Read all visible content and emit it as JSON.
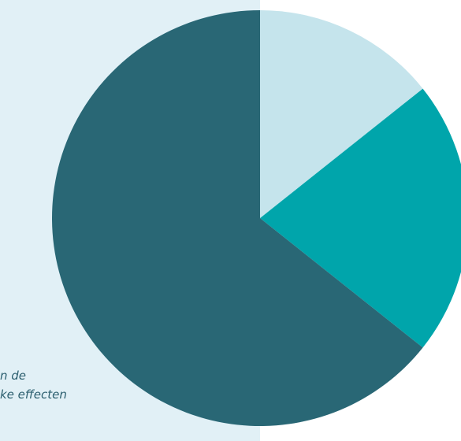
{
  "caption": {
    "line1": "n de",
    "line2": "ke effecten"
  },
  "colors": {
    "panel": "#e1f0f6",
    "caption_text": "#2c5f6f"
  },
  "chart_data": {
    "type": "pie",
    "start": "12 o'clock, clockwise",
    "slices": [
      {
        "value": 14.3,
        "color": "#c5e4ec"
      },
      {
        "value": 21.4,
        "color": "#00a5ab"
      },
      {
        "value": 64.3,
        "color": "#296775"
      }
    ]
  }
}
